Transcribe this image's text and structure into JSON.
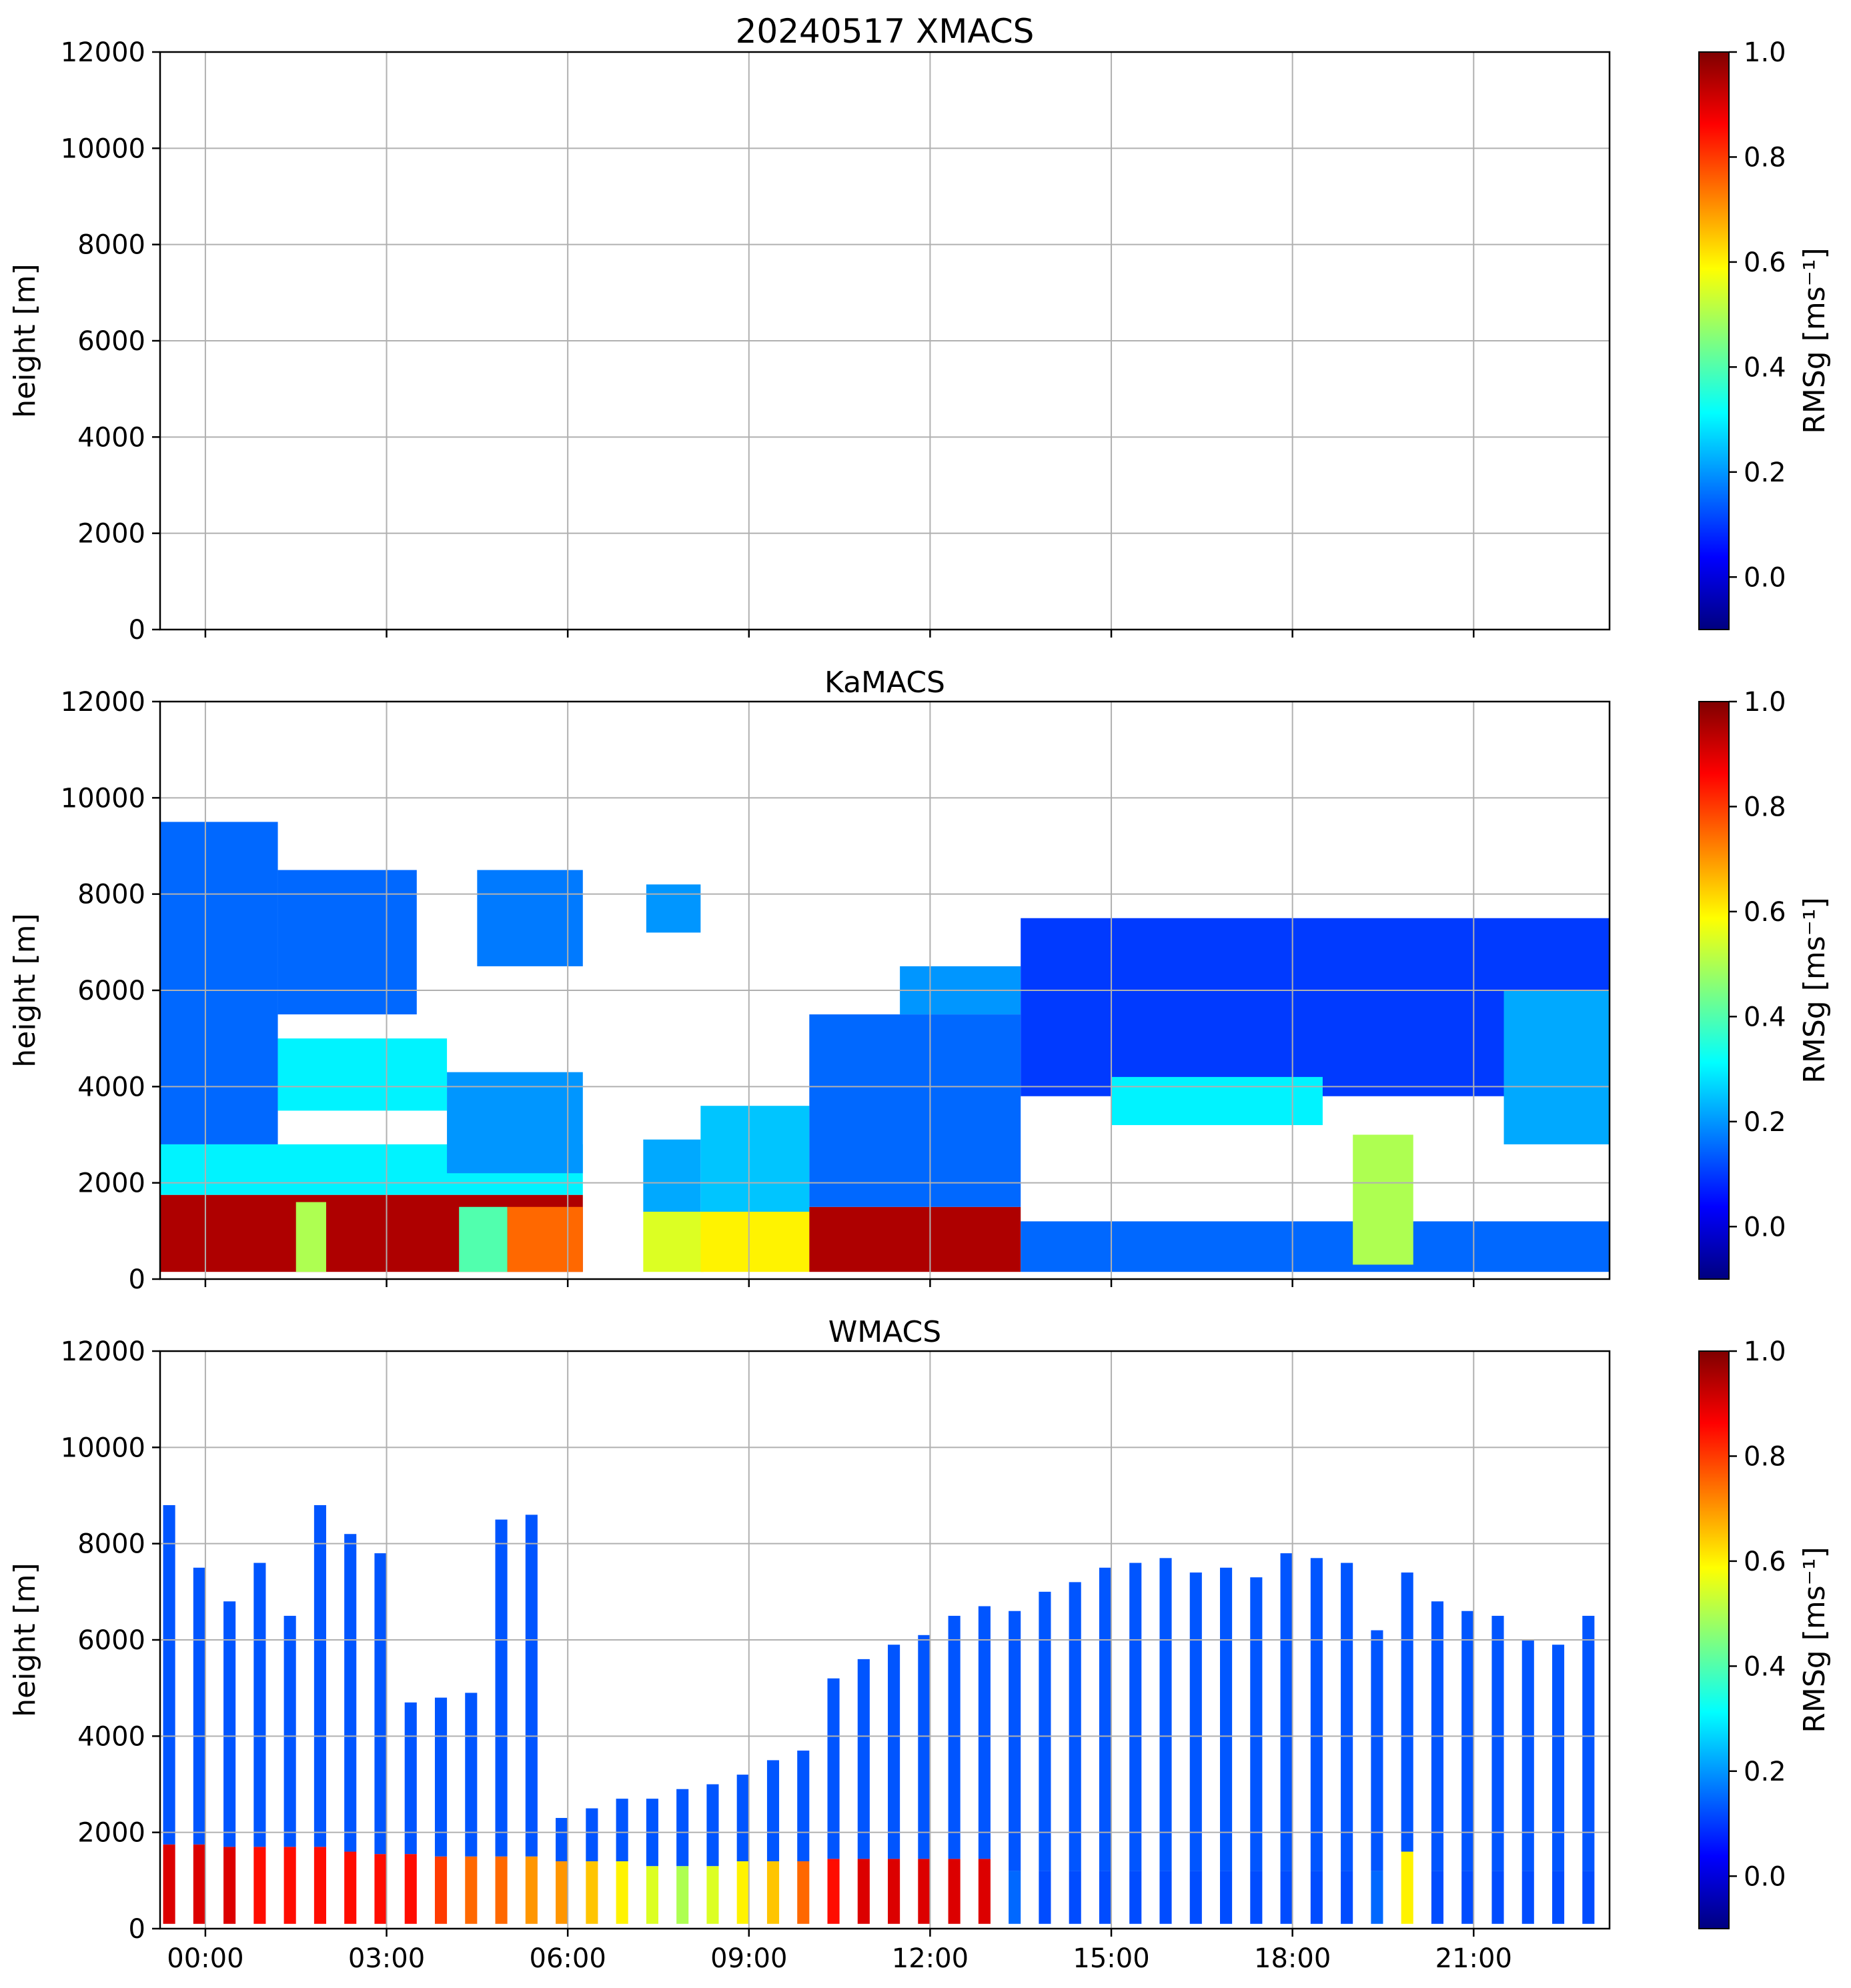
{
  "figure": {
    "colormap": [
      "#00007f",
      "#0000ff",
      "#007fff",
      "#00ffff",
      "#7fff7f",
      "#ffff00",
      "#ff7f00",
      "#ff0000",
      "#7f0000"
    ],
    "background": "#ffffff",
    "grid_color": "#b0b0b0"
  },
  "chart_data": [
    {
      "type": "heatmap",
      "title": "20240517 XMACS",
      "xlabel": "",
      "ylabel": "height [m]",
      "ylim": [
        0,
        12000
      ],
      "xlim_hours": [
        -0.75,
        23.25
      ],
      "y_ticks": [
        "0",
        "2000",
        "4000",
        "6000",
        "8000",
        "10000",
        "12000"
      ],
      "y_tick_values": [
        0,
        2000,
        4000,
        6000,
        8000,
        10000,
        12000
      ],
      "x_tick_hours": [
        0,
        3,
        6,
        9,
        12,
        15,
        18,
        21
      ],
      "x_ticks": [
        "",
        "",
        "",
        "",
        "",
        "",
        "",
        ""
      ],
      "grid": true,
      "colorbar": {
        "label": "RMSg [ms⁻¹]",
        "range": [
          -0.1,
          1.0
        ],
        "ticks": [
          "0.0",
          "0.2",
          "0.4",
          "0.6",
          "0.8",
          "1.0"
        ],
        "tick_values": [
          0.0,
          0.2,
          0.4,
          0.6,
          0.8,
          1.0
        ]
      },
      "layers": []
    },
    {
      "type": "heatmap",
      "title": "KaMACS",
      "xlabel": "",
      "ylabel": "height [m]",
      "ylim": [
        0,
        12000
      ],
      "xlim_hours": [
        -0.75,
        23.25
      ],
      "y_ticks": [
        "0",
        "2000",
        "4000",
        "6000",
        "8000",
        "10000",
        "12000"
      ],
      "y_tick_values": [
        0,
        2000,
        4000,
        6000,
        8000,
        10000,
        12000
      ],
      "x_tick_hours": [
        0,
        3,
        6,
        9,
        12,
        15,
        18,
        21
      ],
      "x_ticks": [
        "",
        "",
        "",
        "",
        "",
        "",
        "",
        ""
      ],
      "grid": true,
      "colorbar": {
        "label": "RMSg [ms⁻¹]",
        "range": [
          -0.1,
          1.0
        ],
        "ticks": [
          "0.0",
          "0.2",
          "0.4",
          "0.6",
          "0.8",
          "1.0"
        ],
        "tick_values": [
          0.0,
          0.2,
          0.4,
          0.6,
          0.8,
          1.0
        ]
      },
      "layers": [
        {
          "x0": -0.75,
          "x1": 6.25,
          "bottom": 150,
          "top": 1750,
          "value": 0.95
        },
        {
          "x0": 1.5,
          "x1": 2.0,
          "bottom": 150,
          "top": 1600,
          "value": 0.5
        },
        {
          "x0": 4.2,
          "x1": 5.0,
          "bottom": 150,
          "top": 1500,
          "value": 0.4
        },
        {
          "x0": 5.0,
          "x1": 6.25,
          "bottom": 150,
          "top": 1500,
          "value": 0.75
        },
        {
          "x0": -0.75,
          "x1": 6.25,
          "bottom": 1750,
          "top": 2800,
          "value": 0.3
        },
        {
          "x0": -0.75,
          "x1": 1.2,
          "bottom": 2800,
          "top": 9500,
          "value": 0.15
        },
        {
          "x0": 1.2,
          "x1": 4.0,
          "bottom": 3500,
          "top": 5000,
          "value": 0.3
        },
        {
          "x0": 1.2,
          "x1": 3.5,
          "bottom": 5500,
          "top": 8500,
          "value": 0.15
        },
        {
          "x0": 4.5,
          "x1": 6.25,
          "bottom": 6500,
          "top": 8500,
          "value": 0.17
        },
        {
          "x0": 4.0,
          "x1": 6.25,
          "bottom": 2200,
          "top": 4300,
          "value": 0.2
        },
        {
          "x0": 7.25,
          "x1": 8.25,
          "bottom": 150,
          "top": 1400,
          "value": 0.55
        },
        {
          "x0": 7.25,
          "x1": 8.2,
          "bottom": 1400,
          "top": 2900,
          "value": 0.22
        },
        {
          "x0": 7.3,
          "x1": 8.2,
          "bottom": 7200,
          "top": 8200,
          "value": 0.2
        },
        {
          "x0": 8.2,
          "x1": 10.0,
          "bottom": 150,
          "top": 1400,
          "value": 0.6
        },
        {
          "x0": 8.2,
          "x1": 10.0,
          "bottom": 1400,
          "top": 3600,
          "value": 0.25
        },
        {
          "x0": 10.0,
          "x1": 13.5,
          "bottom": 150,
          "top": 1500,
          "value": 0.95
        },
        {
          "x0": 10.0,
          "x1": 13.5,
          "bottom": 1500,
          "top": 5500,
          "value": 0.15
        },
        {
          "x0": 11.5,
          "x1": 13.5,
          "bottom": 5500,
          "top": 6500,
          "value": 0.2
        },
        {
          "x0": 13.5,
          "x1": 23.25,
          "bottom": 150,
          "top": 1200,
          "value": 0.15
        },
        {
          "x0": 13.5,
          "x1": 23.25,
          "bottom": 3800,
          "top": 7500,
          "value": 0.1
        },
        {
          "x0": 15.0,
          "x1": 18.5,
          "bottom": 3200,
          "top": 4200,
          "value": 0.3
        },
        {
          "x0": 19.0,
          "x1": 20.0,
          "bottom": 300,
          "top": 3000,
          "value": 0.5
        },
        {
          "x0": 21.5,
          "x1": 23.25,
          "bottom": 2800,
          "top": 6000,
          "value": 0.22
        }
      ]
    },
    {
      "type": "heatmap",
      "title": "WMACS",
      "xlabel": "",
      "ylabel": "height [m]",
      "ylim": [
        0,
        12000
      ],
      "xlim_hours": [
        -0.75,
        23.25
      ],
      "y_ticks": [
        "0",
        "2000",
        "4000",
        "6000",
        "8000",
        "10000",
        "12000"
      ],
      "y_tick_values": [
        0,
        2000,
        4000,
        6000,
        8000,
        10000,
        12000
      ],
      "x_tick_hours": [
        0,
        3,
        6,
        9,
        12,
        15,
        18,
        21
      ],
      "x_ticks": [
        "00:00",
        "03:00",
        "06:00",
        "09:00",
        "12:00",
        "15:00",
        "18:00",
        "21:00"
      ],
      "grid": true,
      "colorbar": {
        "label": "RMSg [ms⁻¹]",
        "range": [
          -0.1,
          1.0
        ],
        "ticks": [
          "0.0",
          "0.2",
          "0.4",
          "0.6",
          "0.8",
          "1.0"
        ],
        "tick_values": [
          0.0,
          0.2,
          0.4,
          0.6,
          0.8,
          1.0
        ]
      },
      "strip_width_hours": 0.2,
      "strips": [
        {
          "hour": -0.6,
          "lower_top": 1750,
          "low_value": 0.9,
          "upper_top": 8800
        },
        {
          "hour": -0.1,
          "lower_top": 1750,
          "low_value": 0.9,
          "upper_top": 7500
        },
        {
          "hour": 0.4,
          "lower_top": 1700,
          "low_value": 0.9,
          "upper_top": 6800
        },
        {
          "hour": 0.9,
          "lower_top": 1700,
          "low_value": 0.85,
          "upper_top": 7600
        },
        {
          "hour": 1.4,
          "lower_top": 1700,
          "low_value": 0.85,
          "upper_top": 6500
        },
        {
          "hour": 1.9,
          "lower_top": 1700,
          "low_value": 0.85,
          "upper_top": 8800
        },
        {
          "hour": 2.4,
          "lower_top": 1600,
          "low_value": 0.85,
          "upper_top": 8200
        },
        {
          "hour": 2.9,
          "lower_top": 1550,
          "low_value": 0.85,
          "upper_top": 7800
        },
        {
          "hour": 3.4,
          "lower_top": 1550,
          "low_value": 0.85,
          "upper_top": 4700
        },
        {
          "hour": 3.9,
          "lower_top": 1500,
          "low_value": 0.8,
          "upper_top": 4800
        },
        {
          "hour": 4.4,
          "lower_top": 1500,
          "low_value": 0.75,
          "upper_top": 4900
        },
        {
          "hour": 4.9,
          "lower_top": 1500,
          "low_value": 0.75,
          "upper_top": 8500
        },
        {
          "hour": 5.4,
          "lower_top": 1500,
          "low_value": 0.7,
          "upper_top": 8600
        },
        {
          "hour": 5.9,
          "lower_top": 1400,
          "low_value": 0.7,
          "upper_top": 2300
        },
        {
          "hour": 6.4,
          "lower_top": 1400,
          "low_value": 0.65,
          "upper_top": 2500
        },
        {
          "hour": 6.9,
          "lower_top": 1400,
          "low_value": 0.6,
          "upper_top": 2700
        },
        {
          "hour": 7.4,
          "lower_top": 1300,
          "low_value": 0.55,
          "upper_top": 2700
        },
        {
          "hour": 7.9,
          "lower_top": 1300,
          "low_value": 0.5,
          "upper_top": 2900
        },
        {
          "hour": 8.4,
          "lower_top": 1300,
          "low_value": 0.55,
          "upper_top": 3000
        },
        {
          "hour": 8.9,
          "lower_top": 1400,
          "low_value": 0.6,
          "upper_top": 3200
        },
        {
          "hour": 9.4,
          "lower_top": 1400,
          "low_value": 0.65,
          "upper_top": 3500
        },
        {
          "hour": 9.9,
          "lower_top": 1400,
          "low_value": 0.75,
          "upper_top": 3700
        },
        {
          "hour": 10.4,
          "lower_top": 1450,
          "low_value": 0.85,
          "upper_top": 5200
        },
        {
          "hour": 10.9,
          "lower_top": 1450,
          "low_value": 0.9,
          "upper_top": 5600
        },
        {
          "hour": 11.4,
          "lower_top": 1450,
          "low_value": 0.9,
          "upper_top": 5900
        },
        {
          "hour": 11.9,
          "lower_top": 1450,
          "low_value": 0.9,
          "upper_top": 6100
        },
        {
          "hour": 12.4,
          "lower_top": 1450,
          "low_value": 0.9,
          "upper_top": 6500
        },
        {
          "hour": 12.9,
          "lower_top": 1450,
          "low_value": 0.9,
          "upper_top": 6700
        },
        {
          "hour": 13.4,
          "lower_top": 1200,
          "low_value": 0.15,
          "upper_top": 6600
        },
        {
          "hour": 13.9,
          "lower_top": 1200,
          "low_value": 0.12,
          "upper_top": 7000
        },
        {
          "hour": 14.4,
          "lower_top": 1200,
          "low_value": 0.12,
          "upper_top": 7200
        },
        {
          "hour": 14.9,
          "lower_top": 1200,
          "low_value": 0.12,
          "upper_top": 7500
        },
        {
          "hour": 15.4,
          "lower_top": 1200,
          "low_value": 0.12,
          "upper_top": 7600
        },
        {
          "hour": 15.9,
          "lower_top": 1200,
          "low_value": 0.12,
          "upper_top": 7700
        },
        {
          "hour": 16.4,
          "lower_top": 1200,
          "low_value": 0.12,
          "upper_top": 7400
        },
        {
          "hour": 16.9,
          "lower_top": 1200,
          "low_value": 0.12,
          "upper_top": 7500
        },
        {
          "hour": 17.4,
          "lower_top": 1200,
          "low_value": 0.12,
          "upper_top": 7300
        },
        {
          "hour": 17.9,
          "lower_top": 1200,
          "low_value": 0.12,
          "upper_top": 7800
        },
        {
          "hour": 18.4,
          "lower_top": 1200,
          "low_value": 0.12,
          "upper_top": 7700
        },
        {
          "hour": 18.9,
          "lower_top": 1200,
          "low_value": 0.12,
          "upper_top": 7600
        },
        {
          "hour": 19.4,
          "lower_top": 1200,
          "low_value": 0.15,
          "upper_top": 6200
        },
        {
          "hour": 19.9,
          "lower_top": 1600,
          "low_value": 0.6,
          "upper_top": 7400
        },
        {
          "hour": 20.4,
          "lower_top": 1200,
          "low_value": 0.12,
          "upper_top": 6800
        },
        {
          "hour": 20.9,
          "lower_top": 1200,
          "low_value": 0.12,
          "upper_top": 6600
        },
        {
          "hour": 21.4,
          "lower_top": 1200,
          "low_value": 0.12,
          "upper_top": 6500
        },
        {
          "hour": 21.9,
          "lower_top": 1200,
          "low_value": 0.12,
          "upper_top": 6000
        },
        {
          "hour": 22.4,
          "lower_top": 1200,
          "low_value": 0.12,
          "upper_top": 5900
        },
        {
          "hour": 22.9,
          "lower_top": 1200,
          "low_value": 0.12,
          "upper_top": 6500
        }
      ]
    }
  ]
}
